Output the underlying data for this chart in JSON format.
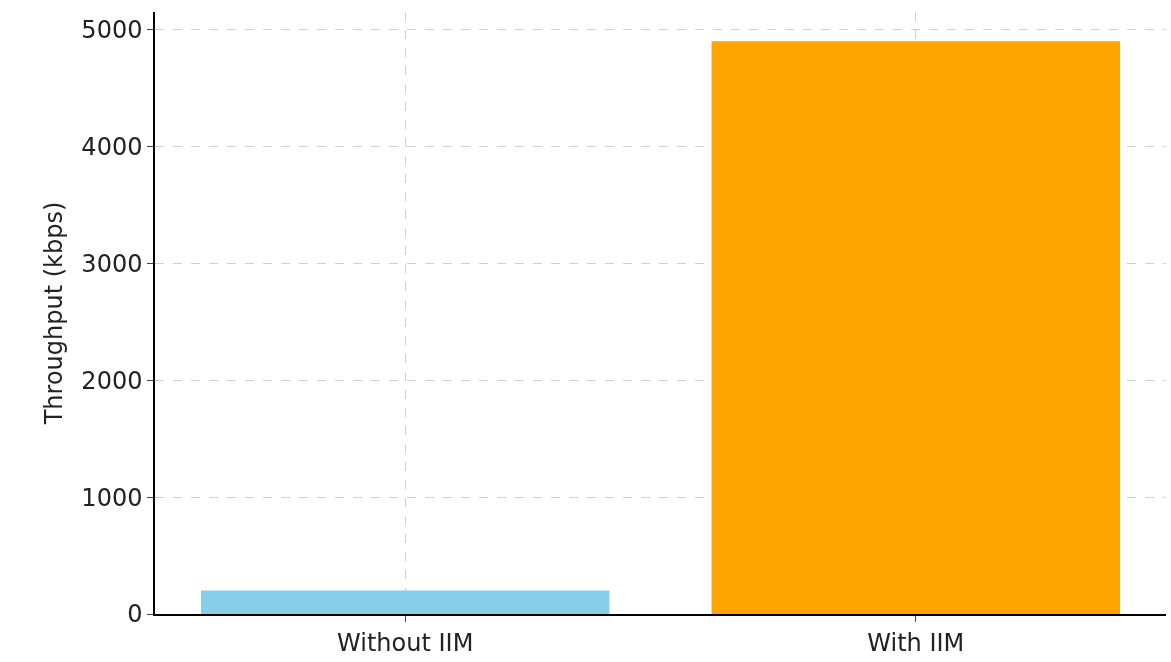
{
  "chart_data": {
    "type": "bar",
    "ylabel": "Throughput (kbps)",
    "categories": [
      "Without IIM",
      "With IIM"
    ],
    "values": [
      200,
      4900
    ],
    "colors": [
      "#87ceeb",
      "#ffa500"
    ],
    "ylim": [
      0,
      5150
    ],
    "yticks": [
      0,
      1000,
      2000,
      3000,
      4000,
      5000
    ],
    "grid": true
  }
}
